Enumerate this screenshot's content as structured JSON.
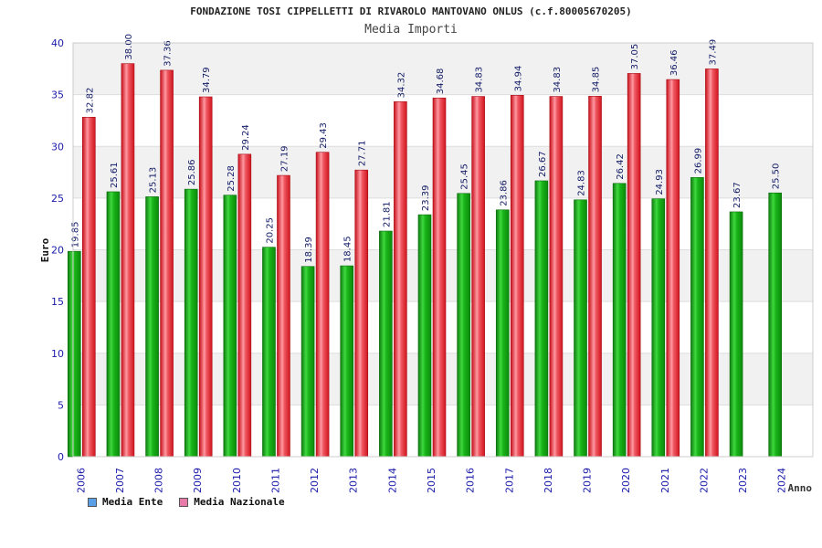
{
  "title": "FONDAZIONE TOSI CIPPELLETTI DI RIVAROLO MANTOVANO ONLUS (c.f.80005670205)",
  "subtitle": "Media Importi",
  "chart_data": {
    "type": "bar",
    "title": "Media Importi",
    "xlabel": "Anno",
    "ylabel": "Euro",
    "ylim": [
      0,
      40
    ],
    "yticks": [
      0,
      5,
      10,
      15,
      20,
      25,
      30,
      35,
      40
    ],
    "categories": [
      "2006",
      "2007",
      "2008",
      "2009",
      "2010",
      "2011",
      "2012",
      "2013",
      "2014",
      "2015",
      "2016",
      "2017",
      "2018",
      "2019",
      "2020",
      "2021",
      "2022",
      "2023",
      "2024"
    ],
    "series": [
      {
        "name": "Media Ente",
        "values": [
          19.85,
          25.61,
          25.13,
          25.86,
          25.28,
          20.25,
          18.39,
          18.45,
          21.81,
          23.39,
          25.45,
          23.86,
          26.67,
          24.83,
          26.42,
          24.93,
          26.99,
          23.67,
          25.5
        ]
      },
      {
        "name": "Media Nazionale",
        "values": [
          32.82,
          38.0,
          37.36,
          34.79,
          29.24,
          27.19,
          29.43,
          27.71,
          34.32,
          34.68,
          34.83,
          34.94,
          34.83,
          34.85,
          37.05,
          36.46,
          37.49,
          null,
          null
        ]
      }
    ],
    "value_labels": [
      [
        "19.85",
        "25.61",
        "25.13",
        "25.86",
        "25.28",
        "20.25",
        "18.39",
        "18.45",
        "21.81",
        "23.39",
        "25.45",
        "23.86",
        "26.67",
        "24.83",
        "26.42",
        "24.93",
        "26.99",
        "23.67",
        "25.50"
      ],
      [
        "32.82",
        "38.00",
        "37.36",
        "34.79",
        "29.24",
        "27.19",
        "29.43",
        "27.71",
        "34.32",
        "34.68",
        "34.83",
        "34.94",
        "34.83",
        "34.85",
        "37.05",
        "36.46",
        "37.49",
        null,
        null
      ]
    ],
    "legend": [
      {
        "label": "Media Ente",
        "swatch_color": "#5aa0e6"
      },
      {
        "label": "Media Nazionale",
        "swatch_color": "#e87aa8"
      }
    ]
  },
  "colors": {
    "ente": "#19b419",
    "nazionale": "#e8202a",
    "axis_text": "#1a1aaa",
    "grid_band": "#f1f1f1"
  }
}
